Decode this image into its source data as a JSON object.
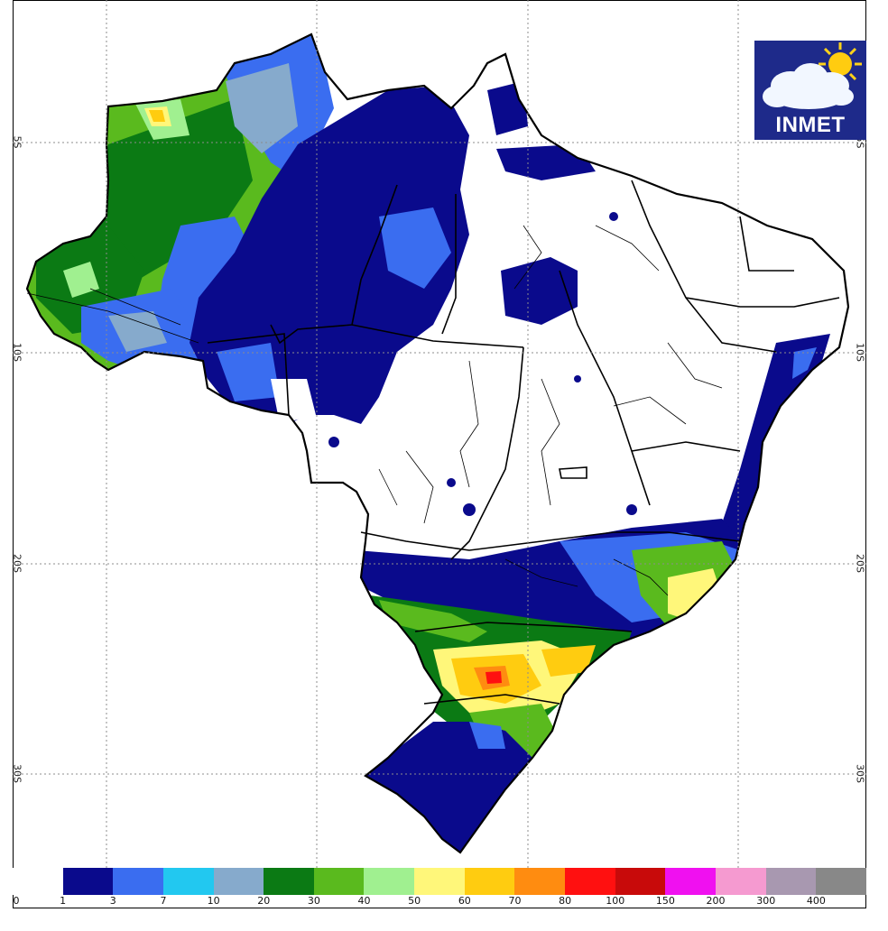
{
  "logo": {
    "text": "INMET"
  },
  "latitude_labels": [
    "5S",
    "10S",
    "20S",
    "30S"
  ],
  "legend": {
    "labels": [
      "0",
      "1",
      "3",
      "7",
      "10",
      "20",
      "30",
      "40",
      "50",
      "60",
      "70",
      "80",
      "100",
      "150",
      "200",
      "300",
      "400"
    ],
    "colors": [
      "#ffffff",
      "#0a0a8c",
      "#3a6df0",
      "#22c8f0",
      "#86aacc",
      "#0b7a14",
      "#5aba1e",
      "#a0f090",
      "#fff77a",
      "#ffcc10",
      "#ff8c10",
      "#ff1010",
      "#c80a0a",
      "#f010f0",
      "#f59ad0",
      "#a898b0",
      "#888888"
    ]
  },
  "colors": {
    "frame": "#000000",
    "grid": "#8c8c8c",
    "state_borders": "#000000",
    "logo_background": "#1e2a8a"
  }
}
